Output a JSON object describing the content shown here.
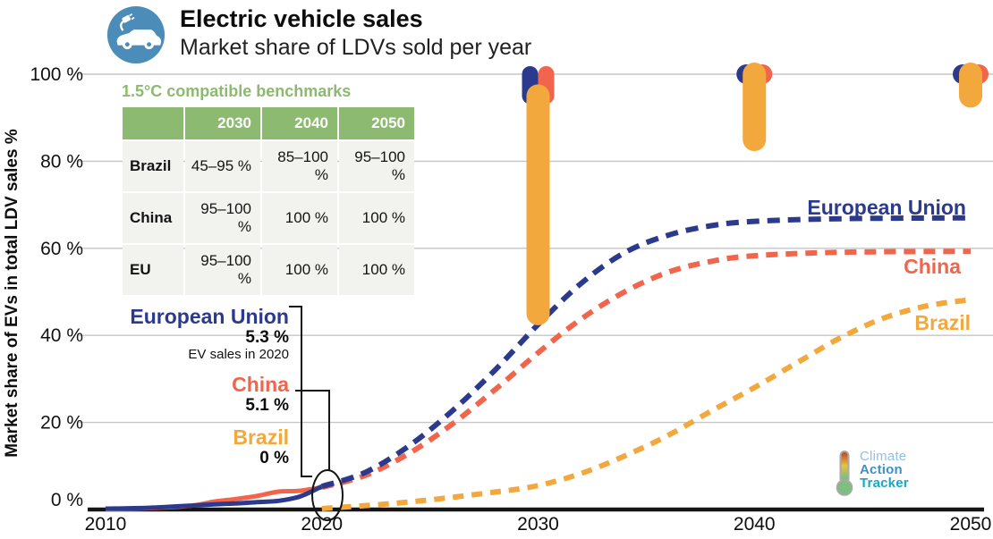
{
  "header": {
    "title": "Electric vehicle sales",
    "subtitle": "Market share of LDVs sold per year",
    "icon_bg": "#4c8cb8"
  },
  "benchmark_table": {
    "title": "1.5°C compatible benchmarks",
    "columns": [
      "2030",
      "2040",
      "2050"
    ],
    "rows": [
      {
        "label": "Brazil",
        "values": [
          "45–95 %",
          "85–100 %",
          "95–100 %"
        ]
      },
      {
        "label": "China",
        "values": [
          "95–100 %",
          "100 %",
          "100 %"
        ]
      },
      {
        "label": "EU",
        "values": [
          "95–100 %",
          "100 %",
          "100 %"
        ]
      }
    ],
    "header_color": "#8cba70"
  },
  "annotations_2020": {
    "note": "EV sales in 2020",
    "items": [
      {
        "name": "European Union",
        "value": "5.3 %",
        "color": "#2b3a8c"
      },
      {
        "name": "China",
        "value": "5.1 %",
        "color": "#f0654c"
      },
      {
        "name": "Brazil",
        "value": "0 %",
        "color": "#f2a83d"
      }
    ]
  },
  "series_labels": [
    {
      "text": "European Union",
      "color": "#2b3a8c"
    },
    {
      "text": "China",
      "color": "#f0654c"
    },
    {
      "text": "Brazil",
      "color": "#f2a83d"
    }
  ],
  "logo": {
    "lines": [
      {
        "text": "Climate",
        "color": "#8fc3e2",
        "bold": false
      },
      {
        "text": "Action",
        "color": "#4090c4",
        "bold": true
      },
      {
        "text": "Tracker",
        "color": "#1ba6c2",
        "bold": true
      }
    ]
  },
  "chart_data": {
    "type": "line",
    "title": "Electric vehicle sales — Market share of LDVs sold per year",
    "xlabel": "",
    "ylabel": "Market share of EVs in total LDV sales %",
    "xlim": [
      2010,
      2050
    ],
    "ylim": [
      0,
      100
    ],
    "x_ticks": [
      2010,
      2020,
      2030,
      2040,
      2050
    ],
    "y_ticks": [
      0,
      20,
      40,
      60,
      80,
      100
    ],
    "y_tick_format": "{v} %",
    "grid": "horizontal",
    "legend_position": "inline-right",
    "series": [
      {
        "name": "European Union",
        "color": "#2b3a8c",
        "historical": [
          [
            2010,
            0.2
          ],
          [
            2012,
            0.4
          ],
          [
            2014,
            0.9
          ],
          [
            2015,
            1.2
          ],
          [
            2016,
            1.4
          ],
          [
            2017,
            1.7
          ],
          [
            2018,
            2.0
          ],
          [
            2019,
            3.0
          ],
          [
            2020,
            5.3
          ]
        ],
        "projection": [
          [
            2020,
            5.3
          ],
          [
            2022,
            8.5
          ],
          [
            2024,
            14.5
          ],
          [
            2026,
            22.5
          ],
          [
            2028,
            32
          ],
          [
            2030,
            42.5
          ],
          [
            2032,
            52
          ],
          [
            2034,
            59
          ],
          [
            2036,
            63
          ],
          [
            2038,
            65.2
          ],
          [
            2040,
            66.2
          ],
          [
            2044,
            66.8
          ],
          [
            2050,
            67
          ]
        ]
      },
      {
        "name": "China",
        "color": "#f0654c",
        "historical": [
          [
            2010,
            0.1
          ],
          [
            2012,
            0.3
          ],
          [
            2014,
            0.9
          ],
          [
            2015,
            1.8
          ],
          [
            2016,
            2.4
          ],
          [
            2017,
            3.1
          ],
          [
            2018,
            4.1
          ],
          [
            2019,
            4.3
          ],
          [
            2020,
            5.1
          ]
        ],
        "projection": [
          [
            2020,
            5.1
          ],
          [
            2022,
            7.8
          ],
          [
            2024,
            12.8
          ],
          [
            2026,
            19.5
          ],
          [
            2028,
            27.5
          ],
          [
            2030,
            36
          ],
          [
            2032,
            43.8
          ],
          [
            2034,
            50
          ],
          [
            2036,
            54.5
          ],
          [
            2038,
            57
          ],
          [
            2040,
            58.3
          ],
          [
            2044,
            59.1
          ],
          [
            2050,
            59.3
          ]
        ]
      },
      {
        "name": "Brazil",
        "color": "#f2a83d",
        "historical": [
          [
            2010,
            0
          ],
          [
            2020,
            0
          ]
        ],
        "projection": [
          [
            2020,
            0.2
          ],
          [
            2024,
            1.7
          ],
          [
            2028,
            4
          ],
          [
            2030,
            5.5
          ],
          [
            2032,
            8.3
          ],
          [
            2034,
            12.3
          ],
          [
            2036,
            17
          ],
          [
            2038,
            22.6
          ],
          [
            2040,
            28
          ],
          [
            2042,
            33.8
          ],
          [
            2044,
            39.5
          ],
          [
            2046,
            44
          ],
          [
            2048,
            46.8
          ],
          [
            2050,
            48.2
          ]
        ]
      }
    ],
    "benchmarks": {
      "label": "1.5°C compatible benchmarks",
      "points": [
        {
          "year": 2030,
          "European Union": [
            95,
            100
          ],
          "China": [
            95,
            100
          ],
          "Brazil": [
            45,
            95
          ]
        },
        {
          "year": 2040,
          "European Union": [
            100,
            100
          ],
          "China": [
            100,
            100
          ],
          "Brazil": [
            85,
            100
          ]
        },
        {
          "year": 2050,
          "European Union": [
            100,
            100
          ],
          "China": [
            100,
            100
          ],
          "Brazil": [
            95,
            100
          ]
        }
      ]
    },
    "annotation_2020": {
      "European Union": 5.3,
      "China": 5.1,
      "Brazil": 0
    }
  }
}
